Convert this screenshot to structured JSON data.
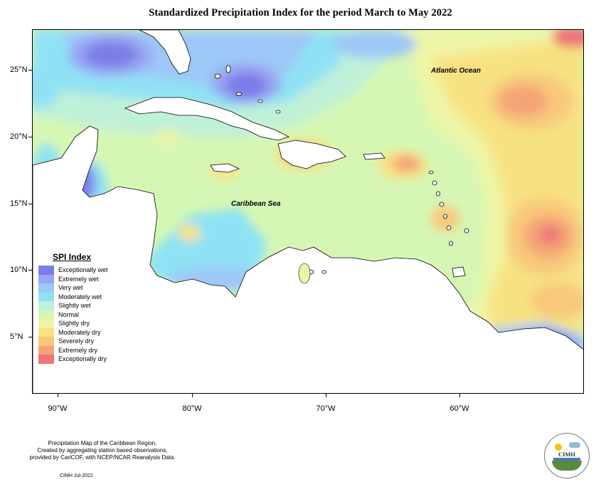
{
  "title": "Standardized Precipitation Index for the period March to May 2022",
  "map": {
    "lat_labels": [
      "25°N",
      "20°N",
      "15°N",
      "10°N",
      "5°N"
    ],
    "lon_labels": [
      "90°W",
      "80°W",
      "70°W",
      "60°W"
    ],
    "ocean_label_atlantic": "Atlantic Ocean",
    "sea_label_caribbean": "Caribbean Sea"
  },
  "legend": {
    "title": "SPI Index",
    "items": [
      {
        "label": "Exceptionally wet",
        "color": "#7b7de8"
      },
      {
        "label": "Extremely wet",
        "color": "#9aa6f2"
      },
      {
        "label": "Very wet",
        "color": "#9dc8f8"
      },
      {
        "label": "Moderately wet",
        "color": "#8fe2f4"
      },
      {
        "label": "Slightly wet",
        "color": "#bff0d8"
      },
      {
        "label": "Normal",
        "color": "#d6f7b4"
      },
      {
        "label": "Slightly dry",
        "color": "#eef5a6"
      },
      {
        "label": "Moderately dry",
        "color": "#f7e282"
      },
      {
        "label": "Severely dry",
        "color": "#f8c97a"
      },
      {
        "label": "Extremely dry",
        "color": "#f4a477"
      },
      {
        "label": "Exceptionally dry",
        "color": "#ef7378"
      }
    ]
  },
  "footer": {
    "line1": "Precipitation Map of the Caribbean Region.",
    "line2": "Created by aggregating station based observations,",
    "line3": "provided by CariCOF, with NCEP/NCAR Reanalysis Data.",
    "credit": "CIMH Jul-2022",
    "logo_text": "CIMH"
  }
}
